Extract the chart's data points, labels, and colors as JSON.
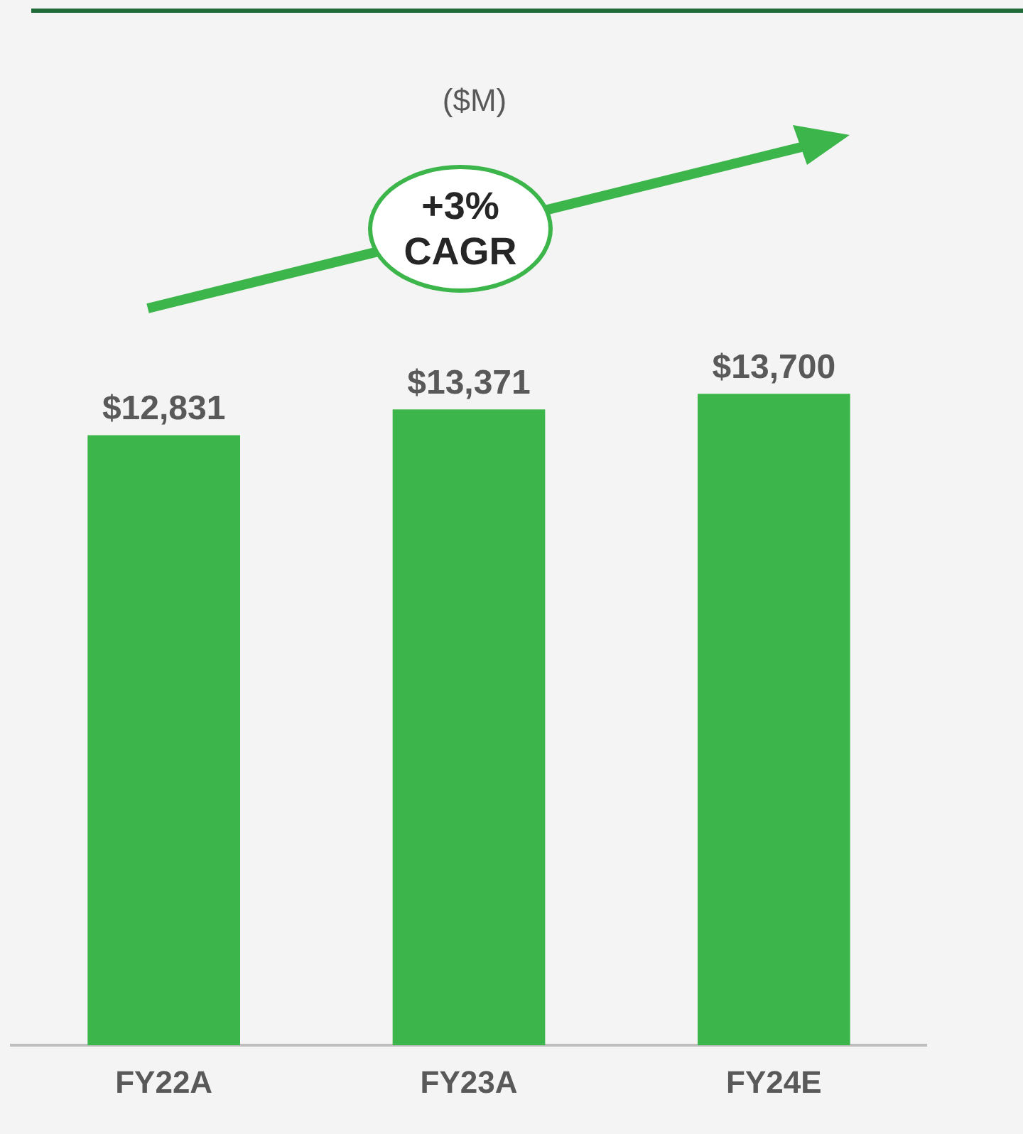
{
  "chart_data": {
    "type": "bar",
    "subtitle": "($M)",
    "categories": [
      "FY22A",
      "FY23A",
      "FY24E"
    ],
    "values": [
      12831,
      13371,
      13700
    ],
    "value_labels": [
      "$12,831",
      "$13,371",
      "$13,700"
    ],
    "color": "#3cb54a",
    "tick_labels": "x",
    "annotations": [
      "+3%\nCAGR"
    ]
  }
}
